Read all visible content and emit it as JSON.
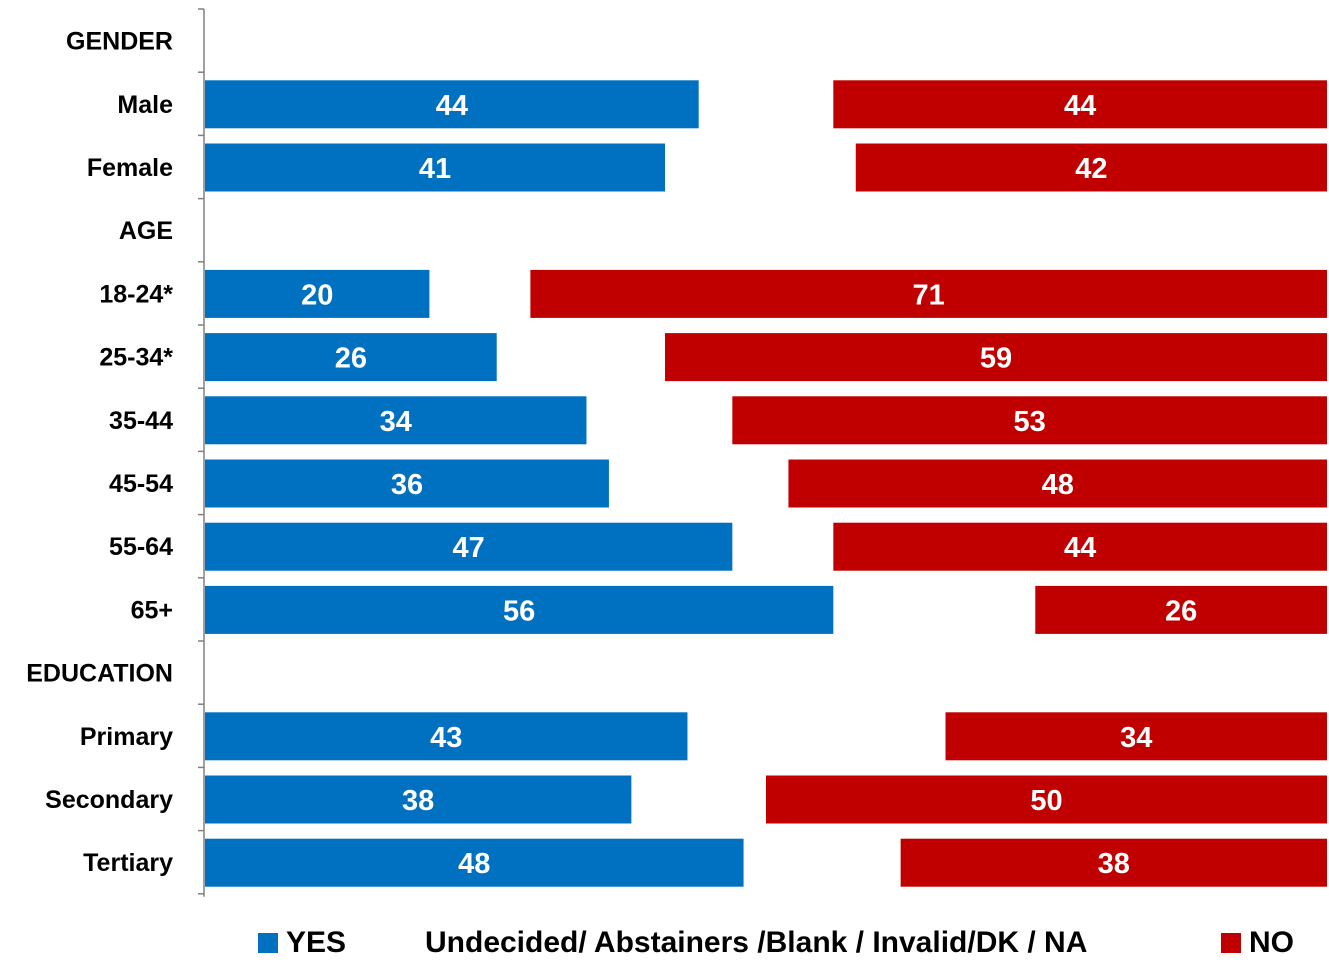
{
  "chart_data": {
    "type": "bar",
    "orientation": "horizontal",
    "layout": "diverging-split",
    "rows": [
      {
        "label": "GENDER",
        "header": true
      },
      {
        "label": "Male",
        "yes": 44,
        "no": 44
      },
      {
        "label": "Female",
        "yes": 41,
        "no": 42
      },
      {
        "label": "AGE",
        "header": true
      },
      {
        "label": "18-24*",
        "yes": 20,
        "no": 71
      },
      {
        "label": "25-34*",
        "yes": 26,
        "no": 59
      },
      {
        "label": "35-44",
        "yes": 34,
        "no": 53
      },
      {
        "label": "45-54",
        "yes": 36,
        "no": 48
      },
      {
        "label": "55-64",
        "yes": 47,
        "no": 44
      },
      {
        "label": "65+",
        "yes": 56,
        "no": 26
      },
      {
        "label": "EDUCATION",
        "header": true
      },
      {
        "label": "Primary",
        "yes": 43,
        "no": 34
      },
      {
        "label": "Secondary",
        "yes": 38,
        "no": 50
      },
      {
        "label": "Tertiary",
        "yes": 48,
        "no": 38
      }
    ],
    "series": [
      {
        "name": "YES",
        "color": "#0070c0"
      },
      {
        "name": "Undecided/ Abstainers /Blank / Invalid/DK / NA",
        "color": "#ffffff"
      },
      {
        "name": "NO",
        "color": "#c00000"
      }
    ],
    "xlim": [
      0,
      100
    ],
    "grid": false,
    "legend_position": "bottom"
  }
}
